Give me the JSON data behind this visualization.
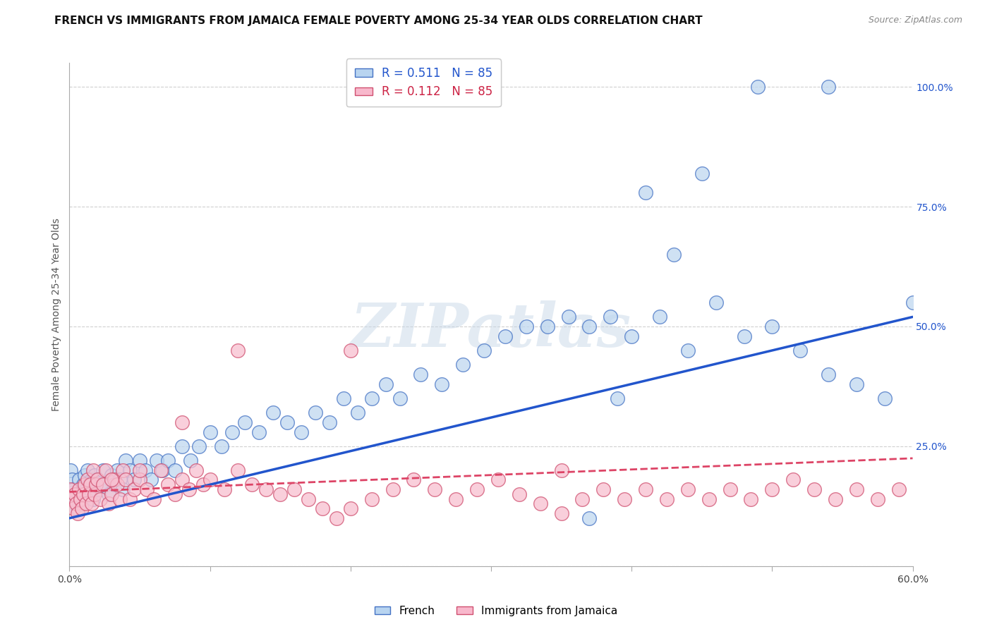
{
  "title": "FRENCH VS IMMIGRANTS FROM JAMAICA FEMALE POVERTY AMONG 25-34 YEAR OLDS CORRELATION CHART",
  "source": "Source: ZipAtlas.com",
  "ylabel": "Female Poverty Among 25-34 Year Olds",
  "right_yticks": [
    0.0,
    0.25,
    0.5,
    0.75,
    1.0
  ],
  "right_yticklabels": [
    "",
    "25.0%",
    "50.0%",
    "75.0%",
    "100.0%"
  ],
  "legend_top": [
    {
      "label": "R = 0.511   N = 85",
      "patch_color": "#b8d4f0",
      "patch_edge": "#4472c4",
      "text_color": "#2255cc"
    },
    {
      "label": "R = 0.112   N = 85",
      "patch_color": "#f8b8cc",
      "patch_edge": "#d05070",
      "text_color": "#cc2244"
    }
  ],
  "legend_bottom": [
    {
      "label": "French",
      "patch_color": "#b8d4f0",
      "patch_edge": "#4472c4"
    },
    {
      "label": "Immigrants from Jamaica",
      "patch_color": "#f8b8cc",
      "patch_edge": "#d05070"
    }
  ],
  "blue_scatter_color": "#c0d8f0",
  "blue_scatter_edge": "#4472c4",
  "pink_scatter_color": "#f8c0d0",
  "pink_scatter_edge": "#d05070",
  "blue_line_color": "#2255cc",
  "pink_line_color": "#dd4466",
  "grid_color": "#d0d0d0",
  "watermark_text": "ZIPatlas",
  "background_color": "#ffffff",
  "xlim": [
    0.0,
    0.6
  ],
  "ylim": [
    0.0,
    1.05
  ],
  "blue_x": [
    0.001,
    0.002,
    0.003,
    0.004,
    0.005,
    0.006,
    0.007,
    0.008,
    0.009,
    0.01,
    0.011,
    0.012,
    0.013,
    0.014,
    0.015,
    0.016,
    0.017,
    0.018,
    0.019,
    0.02,
    0.022,
    0.024,
    0.026,
    0.028,
    0.03,
    0.032,
    0.034,
    0.036,
    0.038,
    0.04,
    0.043,
    0.046,
    0.05,
    0.054,
    0.058,
    0.062,
    0.066,
    0.07,
    0.075,
    0.08,
    0.086,
    0.092,
    0.1,
    0.108,
    0.116,
    0.125,
    0.135,
    0.145,
    0.155,
    0.165,
    0.175,
    0.185,
    0.195,
    0.205,
    0.215,
    0.225,
    0.235,
    0.25,
    0.265,
    0.28,
    0.295,
    0.31,
    0.325,
    0.34,
    0.355,
    0.37,
    0.385,
    0.4,
    0.42,
    0.44,
    0.46,
    0.48,
    0.5,
    0.52,
    0.54,
    0.56,
    0.58,
    0.6,
    0.54,
    0.49,
    0.45,
    0.43,
    0.41,
    0.39,
    0.37
  ],
  "blue_y": [
    0.2,
    0.18,
    0.16,
    0.14,
    0.15,
    0.12,
    0.18,
    0.15,
    0.13,
    0.17,
    0.19,
    0.16,
    0.2,
    0.17,
    0.15,
    0.18,
    0.14,
    0.19,
    0.16,
    0.18,
    0.16,
    0.2,
    0.17,
    0.15,
    0.19,
    0.17,
    0.2,
    0.18,
    0.16,
    0.22,
    0.2,
    0.18,
    0.22,
    0.2,
    0.18,
    0.22,
    0.2,
    0.22,
    0.2,
    0.25,
    0.22,
    0.25,
    0.28,
    0.25,
    0.28,
    0.3,
    0.28,
    0.32,
    0.3,
    0.28,
    0.32,
    0.3,
    0.35,
    0.32,
    0.35,
    0.38,
    0.35,
    0.4,
    0.38,
    0.42,
    0.45,
    0.48,
    0.5,
    0.5,
    0.52,
    0.5,
    0.52,
    0.48,
    0.52,
    0.45,
    0.55,
    0.48,
    0.5,
    0.45,
    0.4,
    0.38,
    0.35,
    0.55,
    1.0,
    1.0,
    0.82,
    0.65,
    0.78,
    0.35,
    0.1
  ],
  "pink_x": [
    0.001,
    0.002,
    0.003,
    0.004,
    0.005,
    0.006,
    0.007,
    0.008,
    0.009,
    0.01,
    0.011,
    0.012,
    0.013,
    0.014,
    0.015,
    0.016,
    0.017,
    0.018,
    0.019,
    0.02,
    0.022,
    0.024,
    0.026,
    0.028,
    0.03,
    0.032,
    0.034,
    0.036,
    0.038,
    0.04,
    0.043,
    0.046,
    0.05,
    0.055,
    0.06,
    0.065,
    0.07,
    0.075,
    0.08,
    0.085,
    0.09,
    0.095,
    0.1,
    0.11,
    0.12,
    0.13,
    0.14,
    0.15,
    0.16,
    0.17,
    0.18,
    0.19,
    0.2,
    0.215,
    0.23,
    0.245,
    0.26,
    0.275,
    0.29,
    0.305,
    0.32,
    0.335,
    0.35,
    0.365,
    0.38,
    0.395,
    0.41,
    0.425,
    0.44,
    0.455,
    0.47,
    0.485,
    0.5,
    0.515,
    0.53,
    0.545,
    0.56,
    0.575,
    0.59,
    0.03,
    0.05,
    0.08,
    0.12,
    0.2,
    0.35
  ],
  "pink_y": [
    0.16,
    0.14,
    0.12,
    0.15,
    0.13,
    0.11,
    0.16,
    0.14,
    0.12,
    0.15,
    0.17,
    0.13,
    0.18,
    0.15,
    0.17,
    0.13,
    0.2,
    0.15,
    0.17,
    0.18,
    0.14,
    0.17,
    0.2,
    0.13,
    0.15,
    0.18,
    0.17,
    0.14,
    0.2,
    0.18,
    0.14,
    0.16,
    0.18,
    0.16,
    0.14,
    0.2,
    0.17,
    0.15,
    0.18,
    0.16,
    0.2,
    0.17,
    0.18,
    0.16,
    0.2,
    0.17,
    0.16,
    0.15,
    0.16,
    0.14,
    0.12,
    0.1,
    0.12,
    0.14,
    0.16,
    0.18,
    0.16,
    0.14,
    0.16,
    0.18,
    0.15,
    0.13,
    0.11,
    0.14,
    0.16,
    0.14,
    0.16,
    0.14,
    0.16,
    0.14,
    0.16,
    0.14,
    0.16,
    0.18,
    0.16,
    0.14,
    0.16,
    0.14,
    0.16,
    0.18,
    0.2,
    0.3,
    0.45,
    0.45,
    0.2
  ],
  "blue_trend_x": [
    0.0,
    0.6
  ],
  "blue_trend_y": [
    0.1,
    0.52
  ],
  "pink_trend_x": [
    0.0,
    0.6
  ],
  "pink_trend_y": [
    0.155,
    0.225
  ],
  "title_fontsize": 11,
  "source_fontsize": 9,
  "legend_fontsize": 12,
  "tick_fontsize": 10,
  "xtick_positions": [
    0.0,
    0.1,
    0.2,
    0.3,
    0.4,
    0.5,
    0.6
  ],
  "xtick_labels_show": [
    "0.0%",
    "",
    "",
    "",
    "",
    "",
    "60.0%"
  ]
}
